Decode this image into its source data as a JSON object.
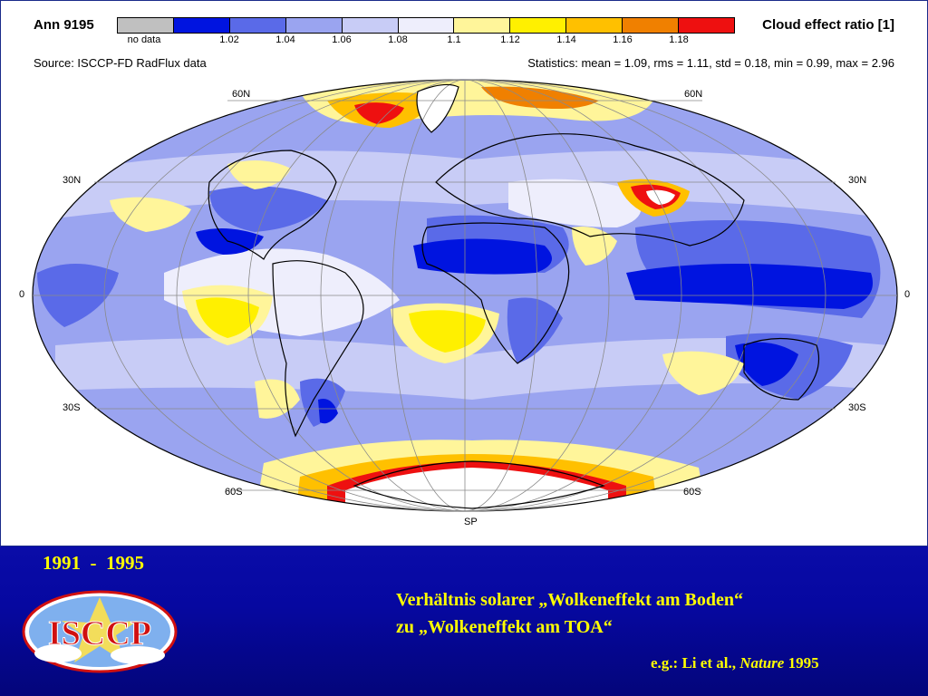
{
  "map": {
    "title": "Ann 9195",
    "units_label": "Cloud effect ratio [1]",
    "source": "Source:  ISCCP-FD RadFlux data",
    "statistics": "Statistics:  mean = 1.09, rms = 1.11, std = 0.18, min = 0.99, max = 2.96",
    "colorbar": {
      "colors": [
        "#c0c0c0",
        "#0014e0",
        "#5a6ae8",
        "#9aa4f0",
        "#c8ccf6",
        "#eeeefc",
        "#fff59a",
        "#fff000",
        "#ffc000",
        "#f08000",
        "#ee1010",
        "#ffffff"
      ],
      "labels": [
        "no data",
        "1.02",
        "1.04",
        "1.06",
        "1.08",
        "1.1",
        "1.12",
        "1.14",
        "1.16",
        "1.18"
      ]
    },
    "lat_labels": {
      "n60_left": "60N",
      "n60_right": "60N",
      "n30_left": "30N",
      "n30_right": "30N",
      "eq_left": "0",
      "eq_right": "0",
      "s30_left": "30S",
      "s30_right": "30S",
      "s60_left": "60S",
      "s60_right": "60S",
      "south_pole": "SP"
    }
  },
  "slide": {
    "years": "1991  -  1995",
    "caption_line1": "Verhältnis solarer „Wolkeneffekt am Boden“",
    "caption_line2": "zu „Wolkeneffekt am TOA“",
    "ref_prefix": "e.g.:  Li  et al.,",
    "ref_journal": "Nature",
    "ref_year": "1995",
    "logo_text": "ISCCP"
  }
}
